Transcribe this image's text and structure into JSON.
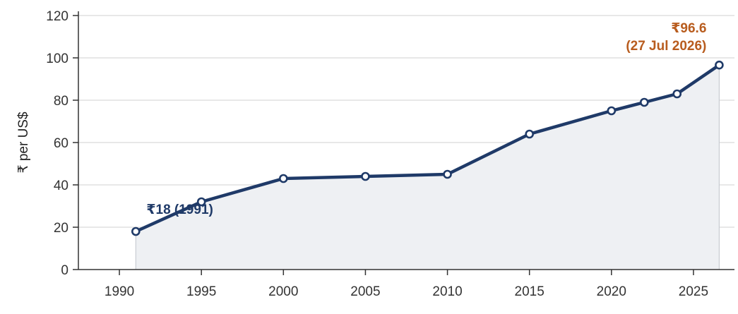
{
  "chart_data": {
    "type": "area",
    "title": "",
    "xlabel": "",
    "ylabel": "₹ per US$",
    "xlim": [
      1987.5,
      2027.5
    ],
    "ylim": [
      0,
      120
    ],
    "x_ticks": [
      1990,
      1995,
      2000,
      2005,
      2010,
      2015,
      2020,
      2025
    ],
    "y_ticks": [
      0,
      20,
      40,
      60,
      80,
      100,
      120
    ],
    "grid": "horizontal",
    "legend": "none",
    "series": [
      {
        "x": [
          1991,
          1995,
          2000,
          2005,
          2010,
          2015,
          2020,
          2022,
          2024,
          2026.57
        ],
        "values": [
          18,
          32,
          43,
          44,
          45,
          64,
          75,
          79,
          83,
          96.6
        ]
      }
    ],
    "annotations": {
      "start": "₹18 (1991)",
      "end_value": "₹96.6",
      "end_date": "(27 Jul 2026)"
    },
    "colors": {
      "line": "#1f3a68",
      "fill": "#eef0f3",
      "grid": "#d9d9d9",
      "axis": "#333333",
      "annotation_start": "#1f3a68",
      "annotation_end": "#b85c1e"
    }
  }
}
